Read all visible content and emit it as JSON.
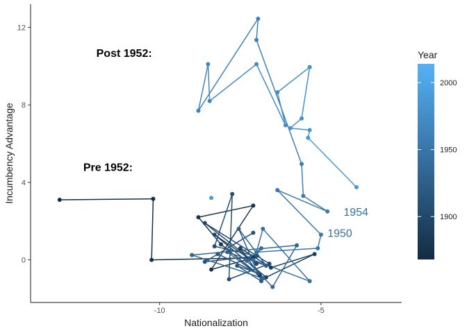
{
  "chart_data": {
    "type": "scatter",
    "xlabel": "Nationalization",
    "ylabel": "Incumbency Advantage",
    "xlim": [
      -14,
      -2.5
    ],
    "ylim": [
      -2.2,
      13.2
    ],
    "x_ticks": [
      -10,
      -5
    ],
    "y_ticks": [
      0,
      4,
      8,
      12
    ],
    "grid": false,
    "legend": {
      "title": "Year",
      "position": "right",
      "range": [
        1868,
        2014
      ],
      "ticks": [
        1900,
        1950,
        2000
      ],
      "color_low": "#132B43",
      "color_high": "#56B1F7"
    },
    "annotations": [
      {
        "text": "Post 1952:",
        "x": -11.1,
        "y": 10.7
      },
      {
        "text": "Pre 1952:",
        "x": -11.6,
        "y": 4.8
      }
    ],
    "point_labels": [
      {
        "text": "1954",
        "x": -4.3,
        "y": 2.5
      },
      {
        "text": "1950",
        "x": -4.8,
        "y": 1.4
      }
    ],
    "series": [
      {
        "points": [
          {
            "x": -13.1,
            "y": 3.1,
            "year": 1868
          },
          {
            "x": -10.2,
            "y": 3.15,
            "year": 1870
          },
          {
            "x": -10.25,
            "y": 0.0,
            "year": 1872
          },
          {
            "x": -7.1,
            "y": 0.1,
            "year": 1874
          },
          {
            "x": -8.4,
            "y": -0.5,
            "year": 1876
          },
          {
            "x": -7.1,
            "y": 2.8,
            "year": 1878
          },
          {
            "x": -8.8,
            "y": 2.2,
            "year": 1880
          },
          {
            "x": -8.1,
            "y": 0.8,
            "year": 1882
          },
          {
            "x": -6.9,
            "y": -0.8,
            "year": 1884
          },
          {
            "x": -7.5,
            "y": 0.6,
            "year": 1886
          },
          {
            "x": -6.55,
            "y": -0.4,
            "year": 1888
          },
          {
            "x": -5.2,
            "y": 0.3,
            "year": 1890
          },
          {
            "x": -6.7,
            "y": -0.9,
            "year": 1892
          },
          {
            "x": -8.3,
            "y": 1.3,
            "year": 1894
          },
          {
            "x": -7.0,
            "y": -0.2,
            "year": 1896
          },
          {
            "x": -8.6,
            "y": 1.9,
            "year": 1898
          },
          {
            "x": -6.6,
            "y": -0.2,
            "year": 1900
          },
          {
            "x": -7.85,
            "y": -1.0,
            "year": 1902
          },
          {
            "x": -7.75,
            "y": 3.4,
            "year": 1904
          },
          {
            "x": -8.3,
            "y": 0.7,
            "year": 1906
          },
          {
            "x": -7.0,
            "y": 0.2,
            "year": 1908
          },
          {
            "x": -8.6,
            "y": -0.1,
            "year": 1910
          },
          {
            "x": -7.1,
            "y": 1.4,
            "year": 1912
          },
          {
            "x": -8.2,
            "y": 0.3,
            "year": 1914
          },
          {
            "x": -6.95,
            "y": -0.7,
            "year": 1916
          },
          {
            "x": -7.6,
            "y": -0.3,
            "year": 1918
          },
          {
            "x": -6.85,
            "y": -1.1,
            "year": 1920
          },
          {
            "x": -7.55,
            "y": 1.6,
            "year": 1922
          },
          {
            "x": -6.7,
            "y": -0.3,
            "year": 1924
          },
          {
            "x": -7.9,
            "y": 0.4,
            "year": 1926
          },
          {
            "x": -6.8,
            "y": -0.95,
            "year": 1928
          },
          {
            "x": -9.0,
            "y": 0.25,
            "year": 1930
          },
          {
            "x": -5.75,
            "y": 0.75,
            "year": 1932
          },
          {
            "x": -6.5,
            "y": -1.4,
            "year": 1934
          },
          {
            "x": -7.3,
            "y": -0.05,
            "year": 1936
          },
          {
            "x": -6.85,
            "y": 0.6,
            "year": 1938
          },
          {
            "x": -7.1,
            "y": 0.0,
            "year": 1940
          },
          {
            "x": -5.35,
            "y": -1.1,
            "year": 1942
          },
          {
            "x": -6.8,
            "y": 1.6,
            "year": 1944
          },
          {
            "x": -7.0,
            "y": 0.4,
            "year": 1946
          },
          {
            "x": -5.1,
            "y": 0.6,
            "year": 1948
          },
          {
            "x": -5.0,
            "y": 1.3,
            "year": 1950
          },
          {
            "x": -6.35,
            "y": 3.6,
            "year": 1952
          },
          {
            "x": -4.8,
            "y": 2.5,
            "year": 1954
          },
          {
            "x": -5.55,
            "y": 3.3,
            "year": 1956
          },
          {
            "x": -5.6,
            "y": 4.95,
            "year": 1958
          },
          {
            "x": -7.0,
            "y": 11.35,
            "year": 1960
          },
          {
            "x": -6.95,
            "y": 12.45,
            "year": 1962
          },
          {
            "x": -8.8,
            "y": 7.7,
            "year": 1964
          },
          {
            "x": -8.5,
            "y": 10.1,
            "year": 1966
          },
          {
            "x": -8.45,
            "y": 8.2,
            "year": 1968
          },
          {
            "x": -7.0,
            "y": 10.1,
            "year": 1970
          },
          {
            "x": -6.1,
            "y": 6.95,
            "year": 1972
          },
          {
            "x": -6.35,
            "y": 8.65,
            "year": 1974
          },
          {
            "x": -5.35,
            "y": 9.95,
            "year": 1976
          },
          {
            "x": -5.6,
            "y": 7.3,
            "year": 1978
          },
          {
            "x": -5.95,
            "y": 6.8,
            "year": 1980
          },
          {
            "x": -5.35,
            "y": 6.7,
            "year": 1982
          },
          {
            "x": -5.4,
            "y": 6.3,
            "year": 1984
          },
          {
            "x": -3.9,
            "y": 3.75,
            "year": 1986
          }
        ]
      },
      {
        "points": [
          {
            "x": -8.4,
            "y": 3.2,
            "year": 1988
          }
        ]
      }
    ]
  }
}
